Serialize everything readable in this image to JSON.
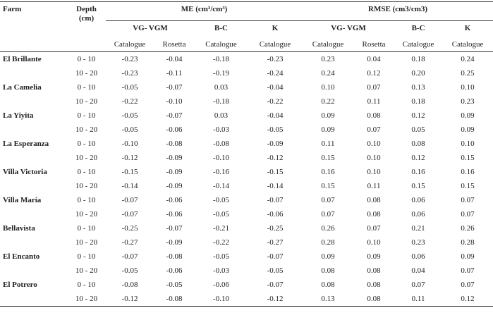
{
  "table": {
    "header": {
      "farm": "Farm",
      "depth": "Depth (cm)",
      "groups": [
        {
          "label": "ME (cm³/cm³)",
          "models": [
            {
              "label": "VG- VGM",
              "sources": [
                "Catalogue",
                "Rosetta"
              ]
            },
            {
              "label": "B-C",
              "sources": [
                "Catalogue"
              ]
            },
            {
              "label": "K",
              "sources": [
                "Catalogue"
              ]
            }
          ]
        },
        {
          "label": "RMSE (cm3/cm3)",
          "models": [
            {
              "label": "VG- VGM",
              "sources": [
                "Catalogue",
                "Rosetta"
              ]
            },
            {
              "label": "B-C",
              "sources": [
                "Catalogue"
              ]
            },
            {
              "label": "K",
              "sources": [
                "Catalogue"
              ]
            }
          ]
        }
      ]
    },
    "farms": [
      {
        "name": "El Brillante",
        "rows": [
          {
            "depth": "0 - 10",
            "values": [
              "-0.23",
              "-0.04",
              "-0.18",
              "-0.23",
              "0.23",
              "0.04",
              "0.18",
              "0.24"
            ]
          },
          {
            "depth": "10 - 20",
            "values": [
              "-0.23",
              "-0.11",
              "-0.19",
              "-0.24",
              "0.24",
              "0.12",
              "0.20",
              "0.25"
            ]
          }
        ]
      },
      {
        "name": "La Camelia",
        "rows": [
          {
            "depth": "0 - 10",
            "values": [
              "-0.05",
              "-0.07",
              "0.03",
              "-0.04",
              "0.10",
              "0.07",
              "0.13",
              "0.10"
            ]
          },
          {
            "depth": "10 - 20",
            "values": [
              "-0.22",
              "-0.10",
              "-0.18",
              "-0.22",
              "0.22",
              "0.11",
              "0.18",
              "0.23"
            ]
          }
        ]
      },
      {
        "name": "La Yiyita",
        "rows": [
          {
            "depth": "0 - 10",
            "values": [
              "-0.05",
              "-0.07",
              "0.03",
              "-0.04",
              "0.09",
              "0.08",
              "0.12",
              "0.09"
            ]
          },
          {
            "depth": "10 - 20",
            "values": [
              "-0.05",
              "-0.06",
              "-0.03",
              "-0.05",
              "0.09",
              "0.07",
              "0.05",
              "0.09"
            ]
          }
        ]
      },
      {
        "name": "La Esperanza",
        "rows": [
          {
            "depth": "0 - 10",
            "values": [
              "-0.10",
              "-0.08",
              "-0.08",
              "-0.09",
              "0.11",
              "0.10",
              "0.08",
              "0.10"
            ]
          },
          {
            "depth": "10 - 20",
            "values": [
              "-0.12",
              "-0.09",
              "-0.10",
              "-0.12",
              "0.15",
              "0.10",
              "0.12",
              "0.15"
            ]
          }
        ]
      },
      {
        "name": "Villa Victoria",
        "rows": [
          {
            "depth": "0 - 10",
            "values": [
              "-0.15",
              "-0.09",
              "-0.16",
              "-0.15",
              "0.16",
              "0.10",
              "0.16",
              "0.16"
            ]
          },
          {
            "depth": "10 - 20",
            "values": [
              "-0.14",
              "-0.09",
              "-0.14",
              "-0.14",
              "0.15",
              "0.11",
              "0.15",
              "0.15"
            ]
          }
        ]
      },
      {
        "name": "Villa María",
        "rows": [
          {
            "depth": "0 - 10",
            "values": [
              "-0.07",
              "-0.06",
              "-0.05",
              "-0.07",
              "0.07",
              "0.08",
              "0.06",
              "0.07"
            ]
          },
          {
            "depth": "10 - 20",
            "values": [
              "-0.07",
              "-0.06",
              "-0.05",
              "-0.06",
              "0.07",
              "0.08",
              "0.06",
              "0.07"
            ]
          }
        ]
      },
      {
        "name": "Bellavista",
        "rows": [
          {
            "depth": "0 - 10",
            "values": [
              "-0.25",
              "-0.07",
              "-0.21",
              "-0.25",
              "0.26",
              "0.07",
              "0.21",
              "0.26"
            ]
          },
          {
            "depth": "10 - 20",
            "values": [
              "-0.27",
              "-0.09",
              "-0.22",
              "-0.27",
              "0.28",
              "0.10",
              "0.23",
              "0.28"
            ]
          }
        ]
      },
      {
        "name": "El Encanto",
        "rows": [
          {
            "depth": "0 - 10",
            "values": [
              "-0.07",
              "-0.08",
              "-0.05",
              "-0.07",
              "0.09",
              "0.09",
              "0.06",
              "0.09"
            ]
          },
          {
            "depth": "10 - 20",
            "values": [
              "-0.05",
              "-0.06",
              "-0.03",
              "-0.05",
              "0.08",
              "0.08",
              "0.04",
              "0.07"
            ]
          }
        ]
      },
      {
        "name": "El Potrero",
        "rows": [
          {
            "depth": "0 - 10",
            "values": [
              "-0.08",
              "-0.05",
              "-0.06",
              "-0.07",
              "0.08",
              "0.08",
              "0.07",
              "0.07"
            ]
          },
          {
            "depth": "10 - 20",
            "values": [
              "-0.12",
              "-0.08",
              "-0.10",
              "-0.12",
              "0.13",
              "0.08",
              "0.11",
              "0.12"
            ]
          }
        ]
      }
    ]
  }
}
